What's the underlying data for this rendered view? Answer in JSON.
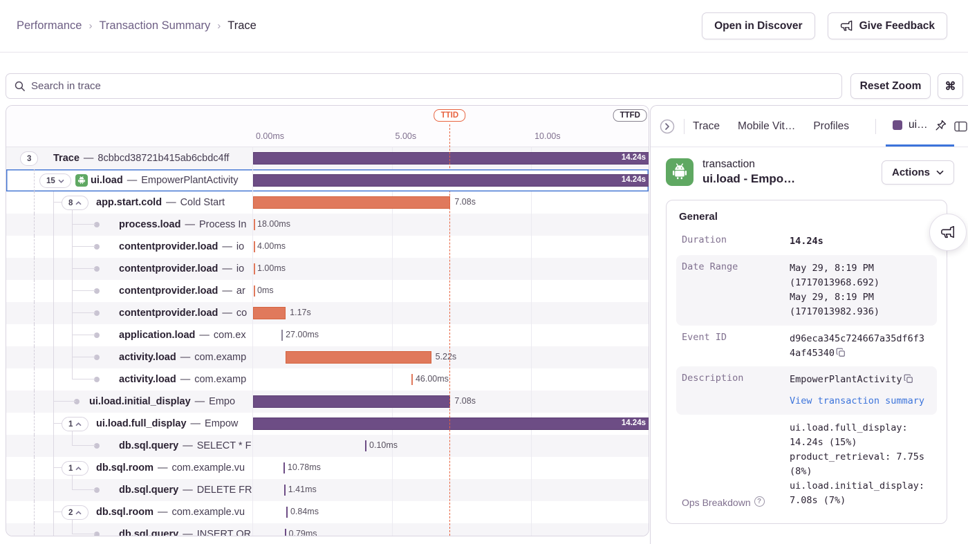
{
  "header": {
    "breadcrumbs": [
      {
        "label": "Performance"
      },
      {
        "label": "Transaction Summary"
      },
      {
        "label": "Trace"
      }
    ],
    "open_in_discover_label": "Open in Discover",
    "give_feedback_label": "Give Feedback"
  },
  "toolbar": {
    "search_placeholder": "Search in trace",
    "reset_zoom_label": "Reset Zoom",
    "shortcut_key": "⌘"
  },
  "timeline": {
    "total_s": 14.24,
    "ticks": [
      {
        "label": "0.00ms",
        "s": 0
      },
      {
        "label": "5.00s",
        "s": 5
      },
      {
        "label": "10.00s",
        "s": 10
      }
    ],
    "markers": [
      {
        "label": "TTID",
        "s": 7.08,
        "color": "#e8633f",
        "align": "center"
      },
      {
        "label": "TTFD",
        "s": 14.24,
        "color": "#87828f",
        "text_color": "#2b2233",
        "align": "left"
      }
    ]
  },
  "trace": {
    "separator": "—",
    "rows": [
      {
        "op": "Trace",
        "desc": "8cbbcd38721b415ab6cbdc4ff",
        "pill": {
          "n": "3",
          "chev": null
        },
        "depth": 0,
        "bar": {
          "start": 0,
          "dur": 14.24,
          "label": "14.24s",
          "color": "purple",
          "inside": true
        }
      },
      {
        "op": "ui.load",
        "desc": "EmpowerPlantActivity",
        "pill": {
          "n": "15",
          "chev": "down"
        },
        "depth": 1,
        "icon": "android",
        "selected": true,
        "bar": {
          "start": 0,
          "dur": 14.24,
          "label": "14.24s",
          "color": "purple",
          "inside": true
        }
      },
      {
        "op": "app.start.cold",
        "desc": "Cold Start",
        "pill": {
          "n": "8",
          "chev": "up"
        },
        "depth": 2,
        "guides": [
          "dash",
          "v68",
          "stub",
          "v95b"
        ],
        "bar": {
          "start": 0,
          "dur": 7.08,
          "label": "7.08s",
          "color": "orange"
        }
      },
      {
        "op": "process.load",
        "desc": "Process In",
        "depth": 3,
        "guides": [
          "dash",
          "v68",
          "v95",
          "d3line",
          "dot3"
        ],
        "bar": {
          "start": 0,
          "dur": 0.018,
          "label": "18.00ms",
          "color": "orange"
        }
      },
      {
        "op": "contentprovider.load",
        "desc": "io",
        "depth": 3,
        "guides": [
          "dash",
          "v68",
          "v95",
          "d3line",
          "dot3"
        ],
        "bar": {
          "start": 0,
          "dur": 0.004,
          "label": "4.00ms",
          "color": "orange"
        }
      },
      {
        "op": "contentprovider.load",
        "desc": "io",
        "depth": 3,
        "guides": [
          "dash",
          "v68",
          "v95",
          "d3line",
          "dot3"
        ],
        "bar": {
          "start": 0,
          "dur": 0.001,
          "label": "1.00ms",
          "color": "orange"
        }
      },
      {
        "op": "contentprovider.load",
        "desc": "ar",
        "depth": 3,
        "guides": [
          "dash",
          "v68",
          "v95",
          "d3line",
          "dot3"
        ],
        "bar": {
          "start": 0,
          "dur": 0,
          "label": "0ms",
          "color": "orange"
        }
      },
      {
        "op": "contentprovider.load",
        "desc": "co",
        "depth": 3,
        "guides": [
          "dash",
          "v68",
          "v95",
          "d3line",
          "dot3"
        ],
        "bar": {
          "start": 0,
          "dur": 1.17,
          "label": "1.17s",
          "color": "orange"
        }
      },
      {
        "op": "application.load",
        "desc": "com.ex",
        "depth": 3,
        "guides": [
          "dash",
          "v68",
          "v95",
          "d3line",
          "dot3"
        ],
        "bar": {
          "start": 1.02,
          "dur": 0.027,
          "label": "27.00ms",
          "color": "gray"
        }
      },
      {
        "op": "activity.load",
        "desc": "com.examp",
        "depth": 3,
        "guides": [
          "dash",
          "v68",
          "v95",
          "d3line",
          "dot3"
        ],
        "bar": {
          "start": 1.17,
          "dur": 5.22,
          "label": "5.22s",
          "color": "orange"
        }
      },
      {
        "op": "activity.load",
        "desc": "com.examp",
        "depth": 3,
        "guides": [
          "dash",
          "v68",
          "v95h",
          "d3line",
          "dot3"
        ],
        "bar": {
          "start": 5.68,
          "dur": 0.046,
          "label": "46.00ms",
          "color": "orange"
        }
      },
      {
        "op": "ui.load.initial_display",
        "desc": "Empo",
        "depth": 2,
        "dot": true,
        "guides": [
          "dash",
          "v68",
          "d2line",
          "dot2"
        ],
        "bar": {
          "start": 0,
          "dur": 7.08,
          "label": "7.08s",
          "color": "purple"
        }
      },
      {
        "op": "ui.load.full_display",
        "desc": "Empow",
        "pill": {
          "n": "1",
          "chev": "up"
        },
        "depth": 2,
        "guides": [
          "dash",
          "v68",
          "stub",
          "v95b"
        ],
        "bar": {
          "start": 0,
          "dur": 14.24,
          "label": "14.24s",
          "color": "purple",
          "inside": true
        }
      },
      {
        "op": "db.sql.query",
        "desc": "SELECT * F",
        "depth": 3,
        "guides": [
          "dash",
          "v68",
          "v95h",
          "d3line",
          "dot3"
        ],
        "bar": {
          "start": 4.02,
          "dur": 0.0001,
          "label": "0.10ms",
          "color": "purple"
        }
      },
      {
        "op": "db.sql.room",
        "desc": "com.example.vu",
        "pill": {
          "n": "1",
          "chev": "up"
        },
        "depth": 2,
        "guides": [
          "dash",
          "v68",
          "stub",
          "v95b"
        ],
        "bar": {
          "start": 1.09,
          "dur": 0.01078,
          "label": "10.78ms",
          "color": "purple"
        }
      },
      {
        "op": "db.sql.query",
        "desc": "DELETE FR",
        "depth": 3,
        "guides": [
          "dash",
          "v68",
          "v95h",
          "d3line",
          "dot3"
        ],
        "bar": {
          "start": 1.11,
          "dur": 0.00141,
          "label": "1.41ms",
          "color": "purple"
        }
      },
      {
        "op": "db.sql.room",
        "desc": "com.example.vu",
        "pill": {
          "n": "2",
          "chev": "up"
        },
        "depth": 2,
        "guides": [
          "dash",
          "v68",
          "stub",
          "v95b"
        ],
        "bar": {
          "start": 1.19,
          "dur": 0.00084,
          "label": "0.84ms",
          "color": "purple"
        }
      },
      {
        "op": "db.sql.query",
        "desc": "INSERT OR",
        "depth": 3,
        "guides": [
          "dash",
          "v68",
          "v95h",
          "d3line",
          "dot3"
        ],
        "bar": {
          "start": 1.13,
          "dur": 0.0008,
          "label": "0.79ms",
          "color": "purple"
        }
      }
    ]
  },
  "drawer": {
    "tabs": [
      "Trace",
      "Mobile Vit…",
      "Profiles"
    ],
    "active_tab_label": "ui…",
    "transaction_type_label": "transaction",
    "transaction_title": "ui.load - Empo…",
    "actions_label": "Actions",
    "general": {
      "section_title": "General",
      "duration_key": "Duration",
      "duration_value": "14.24s",
      "date_range_key": "Date Range",
      "date_range_value": "May 29, 8:19 PM\n(1717013968.692)\nMay 29, 8:19 PM\n(1717013982.936)",
      "event_id_key": "Event ID",
      "event_id_value": "d96eca345c724667a35df6f34af45340",
      "description_key": "Description",
      "description_value": "EmpowerPlantActivity",
      "description_link": "View transaction summary",
      "ops_key": "Ops Breakdown",
      "ops_lines": [
        "ui.load.full_display: 14.24s (15%)",
        "product_retrieval: 7.75s (8%)",
        "ui.load.initial_display: 7.08s (7%)"
      ]
    }
  }
}
